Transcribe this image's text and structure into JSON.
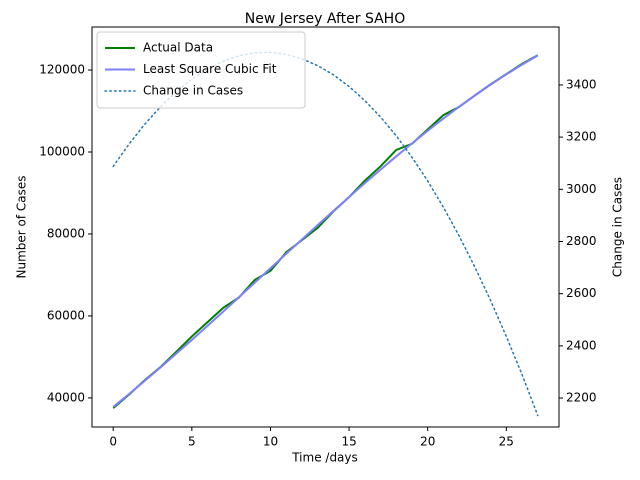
{
  "chart_data": {
    "type": "line",
    "title": "New Jersey After SAHO",
    "x_label": "Time /days",
    "y_label": "Number of Cases",
    "y2_label": "Change in Cases",
    "x": [
      0,
      1,
      2,
      3,
      4,
      5,
      6,
      7,
      8,
      9,
      10,
      11,
      12,
      13,
      14,
      15,
      16,
      17,
      18,
      19,
      20,
      21,
      22,
      23,
      24,
      25,
      26,
      27
    ],
    "series": [
      {
        "name": "Actual Data",
        "color": "#008000",
        "linestyle": "solid",
        "axis": "y",
        "values": [
          37500,
          40800,
          44300,
          47500,
          51200,
          55000,
          58500,
          62000,
          64500,
          68800,
          71000,
          75500,
          78500,
          81500,
          85500,
          89000,
          93000,
          96500,
          100500,
          102000,
          105500,
          109000,
          111000,
          113800,
          116500,
          119000,
          121500,
          123600
        ]
      },
      {
        "name": "Least Square Cubic Fit",
        "color": "#7f7fff",
        "linestyle": "solid",
        "axis": "y",
        "values": [
          37800,
          40931,
          44143,
          47427,
          50772,
          54171,
          57614,
          61091,
          64593,
          68111,
          71635,
          75157,
          78667,
          82155,
          85612,
          89030,
          92398,
          95707,
          98949,
          102114,
          105192,
          108174,
          111051,
          113814,
          116453,
          118959,
          121323,
          123535
        ]
      },
      {
        "name": "Change in Cases",
        "color": "#1f77b4",
        "linestyle": "dotted",
        "axis": "y2",
        "values": [
          3088,
          3173,
          3249,
          3316,
          3374,
          3422,
          3461,
          3491,
          3512,
          3523,
          3525,
          3517,
          3500,
          3474,
          3439,
          3394,
          3340,
          3277,
          3205,
          3123,
          3032,
          2931,
          2821,
          2702,
          2574,
          2436,
          2290,
          2133
        ]
      }
    ],
    "xlim": [
      -1.35,
      28.35
    ],
    "xticks": [
      0,
      5,
      10,
      15,
      20,
      25
    ],
    "ylim": [
      32900,
      130500
    ],
    "yticks": [
      40000,
      60000,
      80000,
      100000,
      120000
    ],
    "y2lim": [
      2089,
      3622
    ],
    "y2ticks": [
      2200,
      2400,
      2600,
      2800,
      3000,
      3200,
      3400
    ],
    "legend": "upper left",
    "grid": false
  }
}
